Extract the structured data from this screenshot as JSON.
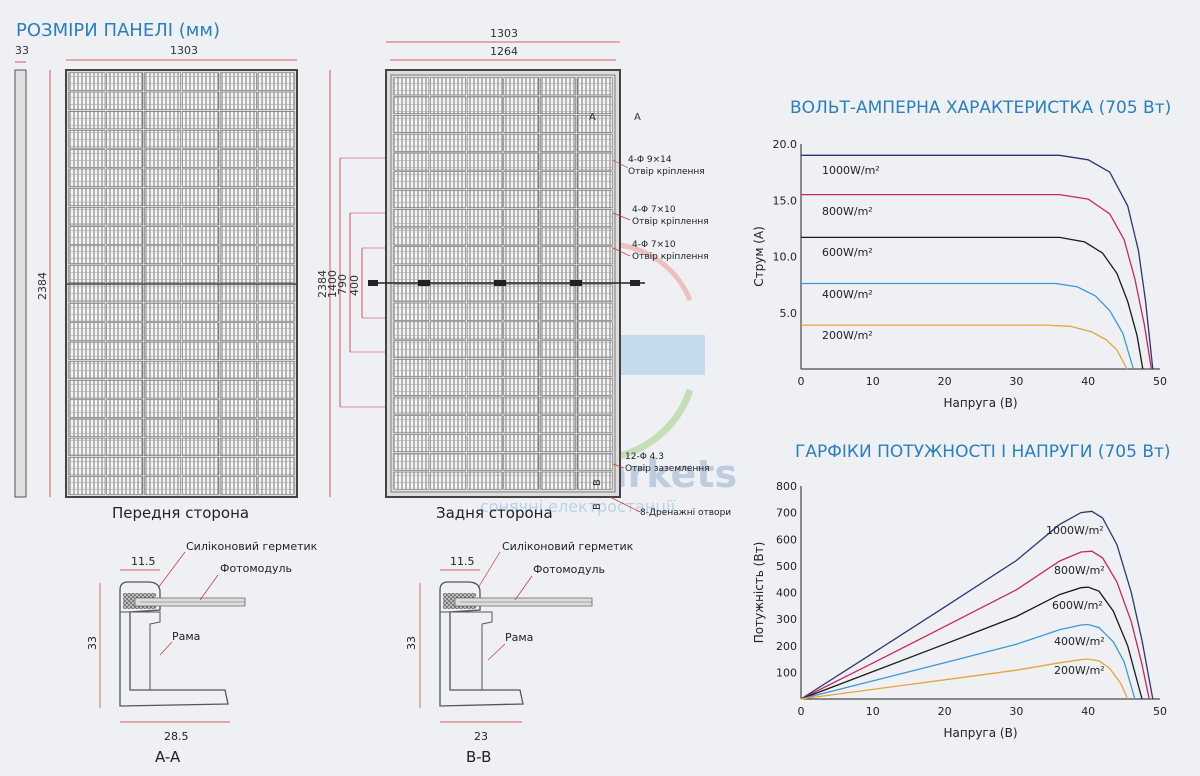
{
  "panel": {
    "title": "РОЗМІРИ ПАНЕЛІ (мм)",
    "front_label": "Передня сторона",
    "back_label": "Задня сторона",
    "dim_thickness": "33",
    "dim_width_front": "1303",
    "dim_height_front": "2384",
    "dim_width_back_outer": "1303",
    "dim_width_back_inner": "1264",
    "dim_height_back": "2384",
    "dim_1400": "1400",
    "dim_790": "790",
    "dim_400": "400",
    "section_mark_a": "A",
    "section_mark_b": "B",
    "hole1_spec": "4-Φ 9×14",
    "hole1_label": "Отвір кріплення",
    "hole2_spec": "4-Φ 7×10",
    "hole2_label": "Отвір кріплення",
    "hole3_spec": "4-Φ 7×10",
    "hole3_label": "Отвір кріплення",
    "ground_spec": "12-Φ 4.3",
    "ground_label": "Отвір заземлення",
    "drain_label": "8-Дренажні отвори"
  },
  "sections": [
    {
      "name": "A-A",
      "dim_top": "11.5",
      "dim_height": "33",
      "dim_bottom": "28.5",
      "label_sealant": "Силіконовий герметик",
      "label_module": "Фотомодуль",
      "label_frame": "Рама"
    },
    {
      "name": "B-B",
      "dim_top": "11.5",
      "dim_height": "33",
      "dim_bottom": "23",
      "label_sealant": "Силіконовий герметик",
      "label_module": "Фотомодуль",
      "label_frame": "Рама"
    }
  ],
  "watermark": {
    "brand": "Solar Markets",
    "tagline": "сонячні електростанції"
  },
  "colors": {
    "title": "#2a7fc0",
    "g1000": "#2e3573",
    "g800": "#c8285f",
    "g600": "#1a1a1a",
    "g400": "#3a9ad6",
    "g200": "#e8a43a"
  },
  "chart_data": [
    {
      "type": "line",
      "title": "ВОЛЬТ-АМПЕРНА ХАРАКТЕРИСТКА (705 Вт)",
      "xlabel": "Напруга (В)",
      "ylabel": "Струм (А)",
      "xlim": [
        0,
        50
      ],
      "ylim": [
        0,
        20
      ],
      "xticks": [
        "0",
        "10",
        "20",
        "30",
        "40",
        "50"
      ],
      "yticks": [
        "5.0",
        "10.0",
        "15.0",
        "20.0"
      ],
      "series": [
        {
          "name": "1000W/m²",
          "color": "#2e3573",
          "points": [
            [
              0,
              19.0
            ],
            [
              36,
              19.0
            ],
            [
              40,
              18.6
            ],
            [
              43,
              17.5
            ],
            [
              45.5,
              14.5
            ],
            [
              47,
              10.5
            ],
            [
              48,
              6
            ],
            [
              49,
              0
            ]
          ]
        },
        {
          "name": "800W/m²",
          "color": "#c8285f",
          "points": [
            [
              0,
              15.5
            ],
            [
              36,
              15.5
            ],
            [
              40,
              15.1
            ],
            [
              43,
              13.8
            ],
            [
              45,
              11.5
            ],
            [
              46.5,
              8
            ],
            [
              47.8,
              4
            ],
            [
              48.8,
              0
            ]
          ]
        },
        {
          "name": "600W/m²",
          "color": "#1a1a1a",
          "points": [
            [
              0,
              11.7
            ],
            [
              36,
              11.7
            ],
            [
              39.5,
              11.3
            ],
            [
              42,
              10.3
            ],
            [
              44,
              8.5
            ],
            [
              45.5,
              6
            ],
            [
              46.8,
              3
            ],
            [
              47.6,
              0
            ]
          ]
        },
        {
          "name": "400W/m²",
          "color": "#3a9ad6",
          "points": [
            [
              0,
              7.6
            ],
            [
              35.5,
              7.6
            ],
            [
              38.5,
              7.3
            ],
            [
              41,
              6.5
            ],
            [
              43,
              5.2
            ],
            [
              44.8,
              3.2
            ],
            [
              46.3,
              0
            ]
          ]
        },
        {
          "name": "200W/m²",
          "color": "#e8a43a",
          "points": [
            [
              0,
              3.9
            ],
            [
              34,
              3.9
            ],
            [
              37.5,
              3.8
            ],
            [
              40.5,
              3.3
            ],
            [
              42.5,
              2.6
            ],
            [
              44,
              1.7
            ],
            [
              45.4,
              0
            ]
          ]
        }
      ]
    },
    {
      "type": "line",
      "title": "ГАРФІКИ ПОТУЖНОСТІ І НАПРУГИ (705 Вт)",
      "xlabel": "Напруга (В)",
      "ylabel": "Потужність (Вт)",
      "xlim": [
        0,
        50
      ],
      "ylim": [
        0,
        800
      ],
      "xticks": [
        "0",
        "10",
        "20",
        "30",
        "40",
        "50"
      ],
      "yticks": [
        "100",
        "200",
        "300",
        "400",
        "500",
        "600",
        "700",
        "800"
      ],
      "series": [
        {
          "name": "1000W/m²",
          "color": "#2e3573",
          "points": [
            [
              0,
              0
            ],
            [
              10,
              172
            ],
            [
              20,
              345
            ],
            [
              30,
              520
            ],
            [
              36,
              655
            ],
            [
              39,
              700
            ],
            [
              40.5,
              705
            ],
            [
              42,
              680
            ],
            [
              44,
              580
            ],
            [
              46,
              400
            ],
            [
              47.5,
              220
            ],
            [
              49,
              0
            ]
          ]
        },
        {
          "name": "800W/m²",
          "color": "#c8285f",
          "points": [
            [
              0,
              0
            ],
            [
              10,
              135
            ],
            [
              20,
              272
            ],
            [
              30,
              410
            ],
            [
              36,
              518
            ],
            [
              39,
              552
            ],
            [
              40.5,
              555
            ],
            [
              42,
              530
            ],
            [
              44,
              440
            ],
            [
              46,
              290
            ],
            [
              47.5,
              130
            ],
            [
              48.5,
              0
            ]
          ]
        },
        {
          "name": "600W/m²",
          "color": "#1a1a1a",
          "points": [
            [
              0,
              0
            ],
            [
              10,
              103
            ],
            [
              20,
              206
            ],
            [
              30,
              310
            ],
            [
              36,
              392
            ],
            [
              39,
              418
            ],
            [
              40,
              420
            ],
            [
              41.5,
              405
            ],
            [
              43.5,
              330
            ],
            [
              45.5,
              200
            ],
            [
              47.5,
              0
            ]
          ]
        },
        {
          "name": "400W/m²",
          "color": "#3a9ad6",
          "points": [
            [
              0,
              0
            ],
            [
              10,
              68
            ],
            [
              20,
              136
            ],
            [
              30,
              206
            ],
            [
              36,
              260
            ],
            [
              39,
              278
            ],
            [
              40,
              280
            ],
            [
              41.5,
              268
            ],
            [
              43.5,
              215
            ],
            [
              45,
              140
            ],
            [
              46.5,
              0
            ]
          ]
        },
        {
          "name": "200W/m²",
          "color": "#e8a43a",
          "points": [
            [
              0,
              0
            ],
            [
              10,
              36
            ],
            [
              20,
              72
            ],
            [
              30,
              108
            ],
            [
              36,
              136
            ],
            [
              39,
              148
            ],
            [
              40,
              150
            ],
            [
              41.5,
              143
            ],
            [
              43,
              115
            ],
            [
              44.5,
              60
            ],
            [
              45.5,
              0
            ]
          ]
        }
      ]
    }
  ]
}
